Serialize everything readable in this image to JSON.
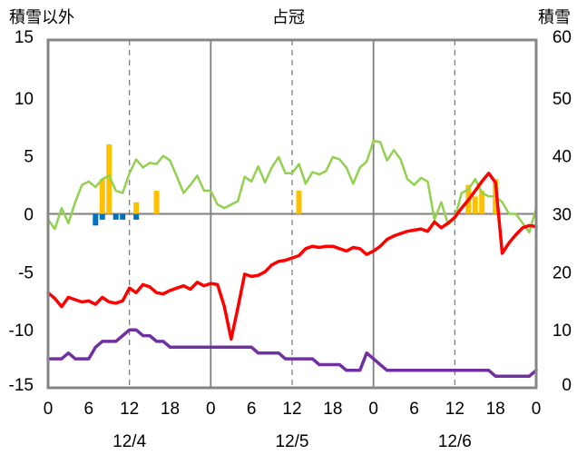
{
  "chart_data": {
    "type": "line",
    "title": "占冠",
    "left_axis_label": "積雪以外",
    "right_axis_label": "積雪",
    "ylim_left": [
      -15,
      15
    ],
    "yticks_left": [
      "15",
      "10",
      "5",
      "0",
      "-5",
      "-10",
      "-15"
    ],
    "ylim_right": [
      0,
      60
    ],
    "yticks_right": [
      "60",
      "50",
      "40",
      "30",
      "20",
      "10",
      "0"
    ],
    "xlim_hours": [
      0,
      72
    ],
    "xtick_labels": [
      "0",
      "6",
      "12",
      "18",
      "0",
      "6",
      "12",
      "18",
      "0",
      "6",
      "12",
      "18",
      "0"
    ],
    "date_labels": [
      "12/4",
      "12/5",
      "12/6"
    ],
    "colors": {
      "temperature": "#ff0000",
      "dewpoint": "#92d050",
      "pressure": "#7030a0",
      "snowfall": "#ffc000",
      "precip": "#0070c0"
    },
    "series": [
      {
        "key": "temperature",
        "axis": "left",
        "x": [
          0,
          1,
          2,
          3,
          4,
          5,
          6,
          7,
          8,
          9,
          10,
          11,
          12,
          13,
          14,
          15,
          16,
          17,
          18,
          19,
          20,
          21,
          22,
          23,
          24,
          25,
          26,
          27,
          28,
          29,
          30,
          31,
          32,
          33,
          34,
          35,
          36,
          37,
          38,
          39,
          40,
          41,
          42,
          43,
          44,
          45,
          46,
          47,
          48,
          49,
          50,
          51,
          52,
          53,
          54,
          55,
          56,
          57,
          58,
          59,
          60,
          61,
          62,
          63,
          64,
          65,
          66,
          67,
          68,
          69,
          70,
          71
        ],
        "values": [
          -6.8,
          -7.3,
          -8.0,
          -7.2,
          -7.4,
          -7.6,
          -7.5,
          -7.8,
          -7.2,
          -7.6,
          -7.7,
          -7.5,
          -6.4,
          -6.8,
          -6.1,
          -6.3,
          -6.8,
          -6.9,
          -6.6,
          -6.4,
          -6.2,
          -6.5,
          -5.9,
          -6.2,
          -6.0,
          -6.1,
          -8.0,
          -10.8,
          -8.1,
          -5.2,
          -5.4,
          -5.3,
          -5.0,
          -4.4,
          -4.1,
          -4.0,
          -3.8,
          -3.6,
          -3.0,
          -2.8,
          -2.9,
          -2.8,
          -2.8,
          -3.0,
          -3.2,
          -2.9,
          -3.0,
          -3.5,
          -3.2,
          -2.8,
          -2.2,
          -1.9,
          -1.7,
          -1.5,
          -1.4,
          -1.3,
          -1.5,
          -0.7,
          -1.2,
          -0.8,
          -0.3,
          0.5,
          1.2,
          2.0,
          2.8,
          3.5,
          2.7,
          -3.4,
          -2.5,
          -1.8,
          -1.2,
          -1.0
        ],
        "end": [
          72,
          -1.1
        ]
      },
      {
        "key": "dewpoint",
        "axis": "left",
        "x": [
          0,
          1,
          2,
          3,
          4,
          5,
          6,
          7,
          8,
          9,
          10,
          11,
          12,
          13,
          14,
          15,
          16,
          17,
          18,
          19,
          20,
          21,
          22,
          23,
          24,
          25,
          26,
          27,
          28,
          29,
          30,
          31,
          32,
          33,
          34,
          35,
          36,
          37,
          38,
          39,
          40,
          41,
          42,
          43,
          44,
          45,
          46,
          47,
          48,
          49,
          50,
          51,
          52,
          53,
          54,
          55,
          56,
          57,
          58,
          59,
          60,
          61,
          62,
          63,
          64,
          65,
          66,
          67,
          68,
          69,
          70,
          71
        ],
        "values": [
          -0.5,
          -1.3,
          0.5,
          -0.8,
          1.0,
          2.5,
          2.8,
          2.3,
          3.0,
          3.3,
          2.0,
          1.8,
          3.5,
          4.7,
          4.0,
          4.4,
          4.3,
          5.0,
          4.6,
          3.2,
          1.8,
          2.5,
          3.3,
          2.0,
          2.0,
          0.8,
          0.5,
          0.8,
          1.1,
          3.2,
          2.8,
          4.1,
          2.7,
          4.0,
          4.9,
          3.5,
          3.5,
          4.3,
          2.6,
          3.6,
          3.4,
          3.7,
          4.9,
          4.7,
          4.0,
          2.6,
          4.0,
          4.5,
          6.3,
          6.2,
          4.6,
          5.5,
          4.7,
          3.0,
          2.5,
          3.1,
          2.8,
          -0.5,
          1.0,
          -0.9,
          -0.4,
          1.8,
          2.1,
          3.0,
          1.8,
          1.5,
          1.5,
          1.0,
          0.0,
          0.0,
          -0.8,
          -1.6
        ],
        "end": [
          72,
          0.5
        ]
      },
      {
        "key": "pressure",
        "axis": "left",
        "x": [
          0,
          1,
          2,
          3,
          4,
          5,
          6,
          7,
          8,
          9,
          10,
          11,
          12,
          13,
          14,
          15,
          16,
          17,
          18,
          19,
          20,
          21,
          22,
          23,
          24,
          25,
          26,
          27,
          28,
          29,
          30,
          31,
          32,
          33,
          34,
          35,
          36,
          37,
          38,
          39,
          40,
          41,
          42,
          43,
          44,
          45,
          46,
          47,
          48,
          49,
          50,
          51,
          52,
          53,
          54,
          55,
          56,
          57,
          58,
          59,
          60,
          61,
          62,
          63,
          64,
          65,
          66,
          67,
          68,
          69,
          70,
          71
        ],
        "values": [
          -12.5,
          -12.5,
          -12.5,
          -12.0,
          -12.5,
          -12.5,
          -12.5,
          -11.5,
          -11.0,
          -11.0,
          -11.0,
          -10.5,
          -10.0,
          -10.0,
          -10.5,
          -10.5,
          -11.0,
          -11.0,
          -11.5,
          -11.5,
          -11.5,
          -11.5,
          -11.5,
          -11.5,
          -11.5,
          -11.5,
          -11.5,
          -11.5,
          -11.5,
          -11.5,
          -11.5,
          -12.0,
          -12.0,
          -12.0,
          -12.0,
          -12.5,
          -12.5,
          -12.5,
          -12.5,
          -12.5,
          -13.0,
          -13.0,
          -13.0,
          -13.0,
          -13.5,
          -13.5,
          -13.5,
          -12.0,
          -12.5,
          -13.0,
          -13.5,
          -13.5,
          -13.5,
          -13.5,
          -13.5,
          -13.5,
          -13.5,
          -13.5,
          -13.5,
          -13.5,
          -13.5,
          -13.5,
          -13.5,
          -13.5,
          -13.5,
          -13.5,
          -14.0,
          -14.0,
          -14.0,
          -14.0,
          -14.0,
          -14.0
        ],
        "end": [
          72,
          -13.5
        ]
      },
      {
        "key": "snowfall",
        "type": "bar",
        "axis": "left",
        "x": [
          8,
          9,
          13,
          16,
          37,
          62,
          63,
          64,
          66
        ],
        "values": [
          3.0,
          6.0,
          1.0,
          2.0,
          2.0,
          2.5,
          1.5,
          2.0,
          3.0
        ]
      },
      {
        "key": "precip",
        "type": "bar",
        "axis": "left",
        "x": [
          7,
          8,
          10,
          11,
          13
        ],
        "values": [
          -1.0,
          -0.5,
          -0.5,
          -0.5,
          -0.5
        ]
      }
    ]
  }
}
